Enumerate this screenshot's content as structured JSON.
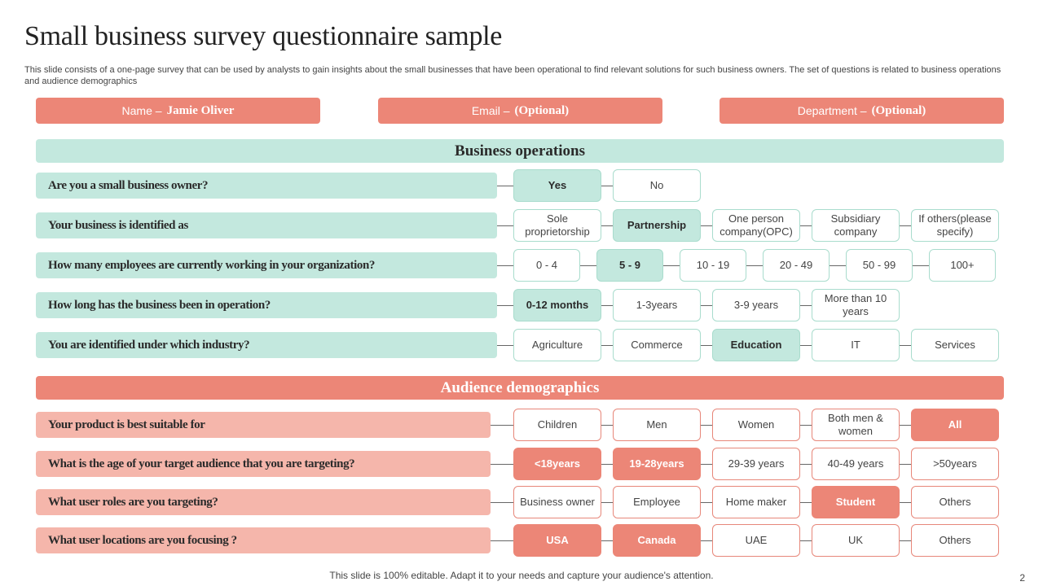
{
  "title": "Small business survey questionnaire sample",
  "subtitle": "This slide consists of a one-page survey that can be used by analysts to gain insights about the small businesses that have been operational to find relevant solutions for such business owners. The set of questions is related to business operations and audience demographics",
  "header_fields": [
    {
      "label": "Name –",
      "value": "Jamie Oliver"
    },
    {
      "label": "Email –",
      "value": "(Optional)"
    },
    {
      "label": "Department –",
      "value": "(Optional)"
    }
  ],
  "sections": {
    "business": {
      "title": "Business operations",
      "questions": [
        {
          "text": "Are you a small business owner?",
          "options": [
            "Yes",
            "No"
          ],
          "selected": [
            0
          ]
        },
        {
          "text": "Your business is identified as",
          "options": [
            "Sole proprietorship",
            "Partnership",
            "One person company(OPC)",
            "Subsidiary company",
            "If others(please specify)"
          ],
          "selected": [
            1
          ]
        },
        {
          "text": "How many employees are currently working in your organization?",
          "options": [
            "0 - 4",
            "5 - 9",
            "10 - 19",
            "20 - 49",
            "50 - 99",
            "100+"
          ],
          "selected": [
            1
          ]
        },
        {
          "text": "How long has the business been in operation?",
          "options": [
            "0-12 months",
            "1-3years",
            "3-9 years",
            "More than 10 years"
          ],
          "selected": [
            0
          ]
        },
        {
          "text": "You are identified under which industry?",
          "options": [
            "Agriculture",
            "Commerce",
            "Education",
            "IT",
            "Services"
          ],
          "selected": [
            2
          ]
        }
      ]
    },
    "audience": {
      "title": "Audience demographics",
      "questions": [
        {
          "text": "Your product is best suitable for",
          "options": [
            "Children",
            "Men",
            "Women",
            "Both men & women",
            "All"
          ],
          "selected": [
            4
          ]
        },
        {
          "text": "What is the age of your target audience that you are targeting?",
          "options": [
            "<18years",
            "19-28years",
            "29-39 years",
            "40-49 years",
            ">50years"
          ],
          "selected": [
            0,
            1
          ]
        },
        {
          "text": "What user roles are you targeting?",
          "options": [
            "Business owner",
            "Employee",
            "Home maker",
            "Student",
            "Others"
          ],
          "selected": [
            3
          ]
        },
        {
          "text": "What user locations are you focusing ?",
          "options": [
            "USA",
            "Canada",
            "UAE",
            "UK",
            "Others"
          ],
          "selected": [
            0,
            1
          ]
        }
      ]
    }
  },
  "footer": "This slide is 100% editable. Adapt it to your needs and capture your audience's attention.",
  "page_number": "2",
  "colors": {
    "green": "#c3e8de",
    "salmon": "#ec8677",
    "light_salmon": "#f5b6ab"
  }
}
